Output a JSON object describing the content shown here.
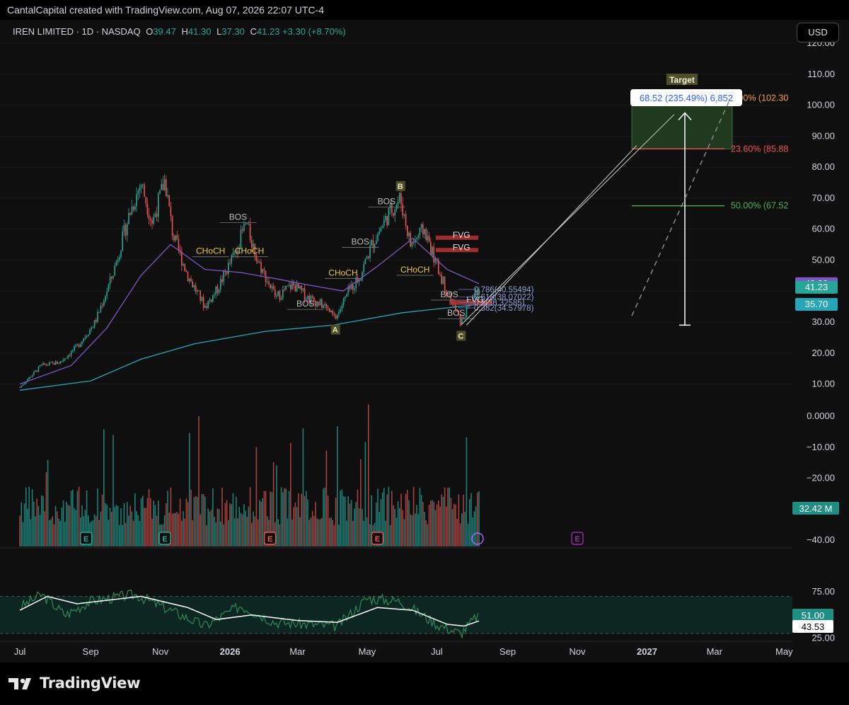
{
  "credit": "CantalCapital created with TradingView.com, Aug 07, 2026 22:07 UTC-4",
  "legend": {
    "symbol": "IREN LIMITED · 1D · NASDAQ",
    "open_label": "O",
    "open": "39.47",
    "high_label": "H",
    "high": "41.30",
    "low_label": "L",
    "low": "37.30",
    "close_label": "C",
    "close": "41.23",
    "change": "+3.30 (+8.70%)"
  },
  "currency": "USD",
  "brand": "TradingView",
  "colors": {
    "up": "#26a69a",
    "down": "#ef5350",
    "ema_fast": "#7e57c2",
    "ema_slow": "#26a6b8",
    "rsi": "#2e8b57"
  },
  "chart_data": [
    {
      "type": "candlestick",
      "ylim": [
        0,
        120
      ],
      "y_ticks": [
        "120.00",
        "110.00",
        "100.00",
        "90.00",
        "80.00",
        "70.00",
        "60.00",
        "50.00",
        "40.00",
        "30.00",
        "20.00",
        "10.00"
      ],
      "x_ticks": [
        "Jul",
        "Sep",
        "Nov",
        "2026",
        "Mar",
        "May",
        "Jul",
        "Sep",
        "Nov",
        "2027",
        "Mar",
        "May"
      ],
      "price_tags": [
        {
          "label": "42.38",
          "value": 42.38,
          "color": "#7e57c2"
        },
        {
          "label": "41.23",
          "value": 41.23,
          "color": "#26a69a"
        },
        {
          "label": "35.70",
          "value": 35.7,
          "color": "#26a6b8"
        }
      ],
      "path": [
        {
          "date": "2025-07-01",
          "price": 9
        },
        {
          "date": "2025-07-20",
          "price": 16
        },
        {
          "date": "2025-08-05",
          "price": 17
        },
        {
          "date": "2025-08-20",
          "price": 22
        },
        {
          "date": "2025-09-05",
          "price": 30
        },
        {
          "date": "2025-09-20",
          "price": 45
        },
        {
          "date": "2025-10-05",
          "price": 65
        },
        {
          "date": "2025-10-15",
          "price": 75
        },
        {
          "date": "2025-10-25",
          "price": 62
        },
        {
          "date": "2025-11-05",
          "price": 76
        },
        {
          "date": "2025-11-12",
          "price": 58
        },
        {
          "date": "2025-11-25",
          "price": 45
        },
        {
          "date": "2025-12-10",
          "price": 35
        },
        {
          "date": "2025-12-20",
          "price": 40
        },
        {
          "date": "2026-01-05",
          "price": 52
        },
        {
          "date": "2026-01-15",
          "price": 62
        },
        {
          "date": "2026-01-25",
          "price": 50
        },
        {
          "date": "2026-02-10",
          "price": 38
        },
        {
          "date": "2026-02-25",
          "price": 42
        },
        {
          "date": "2026-03-10",
          "price": 38
        },
        {
          "date": "2026-03-25",
          "price": 35
        },
        {
          "date": "2026-04-03",
          "price": 31
        },
        {
          "date": "2026-04-15",
          "price": 40
        },
        {
          "date": "2026-04-25",
          "price": 45
        },
        {
          "date": "2026-05-05",
          "price": 55
        },
        {
          "date": "2026-05-20",
          "price": 65
        },
        {
          "date": "2026-05-30",
          "price": 70
        },
        {
          "date": "2026-06-08",
          "price": 55
        },
        {
          "date": "2026-06-20",
          "price": 60
        },
        {
          "date": "2026-07-01",
          "price": 48
        },
        {
          "date": "2026-07-10",
          "price": 40
        },
        {
          "date": "2026-07-22",
          "price": 30
        },
        {
          "date": "2026-08-07",
          "price": 41.23
        }
      ],
      "ema_fast": [
        {
          "date": "2025-07-01",
          "price": 10
        },
        {
          "date": "2025-08-15",
          "price": 16
        },
        {
          "date": "2025-09-15",
          "price": 28
        },
        {
          "date": "2025-10-15",
          "price": 45
        },
        {
          "date": "2025-11-10",
          "price": 55
        },
        {
          "date": "2025-12-10",
          "price": 47
        },
        {
          "date": "2026-01-10",
          "price": 46
        },
        {
          "date": "2026-02-10",
          "price": 44
        },
        {
          "date": "2026-03-10",
          "price": 42
        },
        {
          "date": "2026-04-10",
          "price": 40
        },
        {
          "date": "2026-05-10",
          "price": 48
        },
        {
          "date": "2026-06-10",
          "price": 57
        },
        {
          "date": "2026-07-10",
          "price": 47
        },
        {
          "date": "2026-08-07",
          "price": 42.38
        }
      ],
      "ema_slow": [
        {
          "date": "2025-07-01",
          "price": 8
        },
        {
          "date": "2025-09-01",
          "price": 11
        },
        {
          "date": "2025-10-15",
          "price": 18
        },
        {
          "date": "2025-12-01",
          "price": 23
        },
        {
          "date": "2026-02-01",
          "price": 27
        },
        {
          "date": "2026-04-01",
          "price": 29
        },
        {
          "date": "2026-06-01",
          "price": 33
        },
        {
          "date": "2026-08-07",
          "price": 35.7
        }
      ],
      "fib_levels": [
        {
          "label": "0.786(40.55494)",
          "value": 40.55
        },
        {
          "label": "0.618(38.07022)",
          "value": 38.07
        },
        {
          "label": "0.5(36.32585)",
          "value": 36.33
        },
        {
          "label": "0.382(34.57978)",
          "value": 34.58
        }
      ],
      "target_levels": [
        {
          "label": "0.00% (102.30",
          "value": 102.3,
          "color": "#f39c3c"
        },
        {
          "label": "23.60% (85.88",
          "value": 85.88,
          "color": "#ef5350"
        },
        {
          "label": "50.00% (67.52",
          "value": 67.52,
          "color": "#4caf50"
        }
      ],
      "target_box": {
        "label": "Target",
        "measure": "68.52 (235.49%) 6,852",
        "from": 29,
        "to": 97.5
      },
      "wave_points": [
        {
          "label": "A",
          "date": "2026-04-03",
          "price": 31
        },
        {
          "label": "B",
          "date": "2026-05-30",
          "price": 70
        },
        {
          "label": "C",
          "date": "2026-07-22",
          "price": 29
        }
      ],
      "structure_labels": [
        {
          "label": "BOS",
          "date": "2026-01-08",
          "price": 63
        },
        {
          "label": "CHoCH",
          "date": "2025-12-15",
          "price": 52
        },
        {
          "label": "CHoCH",
          "date": "2026-01-18",
          "price": 52
        },
        {
          "label": "BOS",
          "date": "2026-03-08",
          "price": 35
        },
        {
          "label": "CHoCH",
          "date": "2026-04-10",
          "price": 45
        },
        {
          "label": "BOS",
          "date": "2026-04-25",
          "price": 55
        },
        {
          "label": "BOS",
          "date": "2026-05-18",
          "price": 68
        },
        {
          "label": "CHoCH",
          "date": "2026-06-12",
          "price": 46
        },
        {
          "label": "BOS",
          "date": "2026-07-12",
          "price": 38
        },
        {
          "label": "BOS",
          "date": "2026-07-18",
          "price": 32
        },
        {
          "label": "FVG",
          "date": "2026-07-10",
          "price": 57
        },
        {
          "label": "FVG",
          "date": "2026-07-10",
          "price": 53
        },
        {
          "label": "FVG",
          "date": "2026-07-22",
          "price": 36
        }
      ]
    },
    {
      "type": "bar",
      "name": "Volume",
      "ylim": [
        -40,
        0
      ],
      "y_ticks": [
        "0.0000",
        "−10.00",
        "−20.00",
        "−40.00"
      ],
      "last_value_label": "32.42 M",
      "earnings_markers": [
        {
          "date": "2025-08-28",
          "label": "E"
        },
        {
          "date": "2025-11-05",
          "label": "E"
        },
        {
          "date": "2026-02-05",
          "label": "E"
        },
        {
          "date": "2026-05-10",
          "label": "E"
        },
        {
          "date": "2026-11-01",
          "label": "E"
        }
      ]
    },
    {
      "type": "line",
      "name": "RSI",
      "ylim": [
        25,
        75
      ],
      "y_ticks": [
        "75.00",
        "25.00"
      ],
      "value_tags": [
        {
          "label": "51.00",
          "color": "#26a69a"
        },
        {
          "label": "43.53",
          "color": "#ffffff"
        }
      ],
      "rsi": [
        {
          "date": "2025-07-01",
          "value": 58
        },
        {
          "date": "2025-07-20",
          "value": 72
        },
        {
          "date": "2025-08-10",
          "value": 50
        },
        {
          "date": "2025-09-01",
          "value": 65
        },
        {
          "date": "2025-10-10",
          "value": 72
        },
        {
          "date": "2025-11-10",
          "value": 55
        },
        {
          "date": "2025-12-10",
          "value": 38
        },
        {
          "date": "2026-01-10",
          "value": 60
        },
        {
          "date": "2026-02-10",
          "value": 42
        },
        {
          "date": "2026-03-10",
          "value": 40
        },
        {
          "date": "2026-04-05",
          "value": 38
        },
        {
          "date": "2026-05-01",
          "value": 68
        },
        {
          "date": "2026-05-30",
          "value": 65
        },
        {
          "date": "2026-07-01",
          "value": 40
        },
        {
          "date": "2026-07-22",
          "value": 30
        },
        {
          "date": "2026-08-07",
          "value": 51
        }
      ],
      "rsi_ma": [
        {
          "date": "2025-07-01",
          "value": 55
        },
        {
          "date": "2025-07-25",
          "value": 70
        },
        {
          "date": "2025-08-20",
          "value": 62
        },
        {
          "date": "2025-10-15",
          "value": 70
        },
        {
          "date": "2025-11-25",
          "value": 58
        },
        {
          "date": "2025-12-20",
          "value": 45
        },
        {
          "date": "2026-01-20",
          "value": 50
        },
        {
          "date": "2026-03-01",
          "value": 44
        },
        {
          "date": "2026-04-05",
          "value": 42
        },
        {
          "date": "2026-05-10",
          "value": 58
        },
        {
          "date": "2026-06-10",
          "value": 55
        },
        {
          "date": "2026-07-10",
          "value": 40
        },
        {
          "date": "2026-07-25",
          "value": 38
        },
        {
          "date": "2026-08-07",
          "value": 43.53
        }
      ]
    }
  ]
}
